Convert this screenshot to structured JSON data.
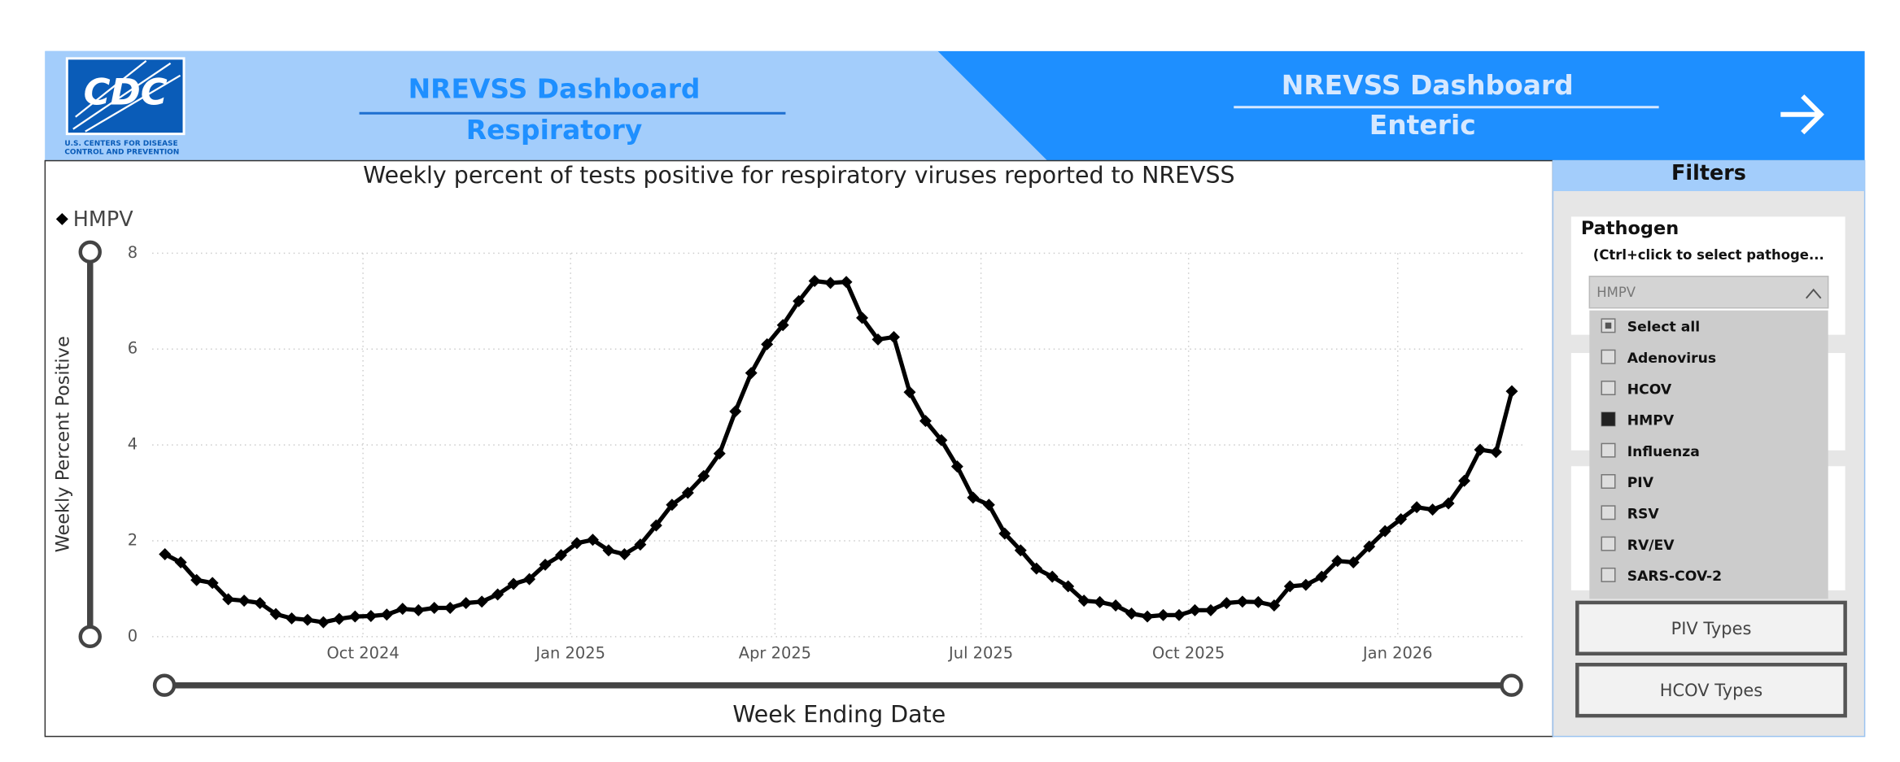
{
  "header": {
    "logo_text": "CDC",
    "logo_subtitle": [
      "U.S. CENTERS FOR DISEASE",
      "CONTROL AND PREVENTION"
    ],
    "tab_respiratory": [
      "NREVSS Dashboard",
      "Respiratory"
    ],
    "tab_enteric": [
      "NREVSS Dashboard",
      "Enteric"
    ]
  },
  "chart_data": {
    "type": "line",
    "title": "Weekly percent of tests positive for respiratory viruses reported to NREVSS",
    "x_label": "Week Ending Date",
    "y_label": "Weekly Percent Positive",
    "series": [
      {
        "name": "HMPV",
        "color": "#000000",
        "values": [
          1.72,
          1.55,
          1.18,
          1.12,
          0.78,
          0.75,
          0.7,
          0.47,
          0.38,
          0.35,
          0.3,
          0.37,
          0.42,
          0.43,
          0.46,
          0.58,
          0.55,
          0.6,
          0.6,
          0.7,
          0.73,
          0.88,
          1.1,
          1.2,
          1.5,
          1.7,
          1.95,
          2.02,
          1.8,
          1.72,
          1.92,
          2.32,
          2.75,
          3.0,
          3.35,
          3.82,
          4.7,
          5.5,
          6.1,
          6.5,
          7.0,
          7.42,
          7.38,
          7.4,
          6.65,
          6.2,
          6.25,
          5.1,
          4.5,
          4.1,
          3.55,
          2.9,
          2.75,
          2.15,
          1.8,
          1.42,
          1.25,
          1.05,
          0.75,
          0.72,
          0.65,
          0.48,
          0.42,
          0.45,
          0.45,
          0.55,
          0.55,
          0.7,
          0.73,
          0.72,
          0.65,
          1.05,
          1.08,
          1.25,
          1.58,
          1.55,
          1.88,
          2.2,
          2.45,
          2.7,
          2.65,
          2.78,
          3.25,
          3.9,
          3.85,
          5.12
        ]
      }
    ],
    "xlim": [
      -0.8,
      85.9
    ],
    "xticks": [
      {
        "value": 12.5,
        "label": "Oct 2024"
      },
      {
        "value": 25.6,
        "label": "Jan 2025"
      },
      {
        "value": 38.5,
        "label": "Apr 2025"
      },
      {
        "value": 51.5,
        "label": "Jul 2025"
      },
      {
        "value": 64.6,
        "label": "Oct 2025"
      },
      {
        "value": 77.8,
        "label": "Jan 2026"
      }
    ],
    "ylim": [
      0,
      8
    ],
    "yticks": [
      0,
      2,
      4,
      6,
      8
    ],
    "grid": true,
    "legend": "top-left"
  },
  "filters": {
    "title": "Filters",
    "pathogen": {
      "label": "Pathogen",
      "hint": "(Ctrl+click to select pathoge...",
      "selected": "HMPV",
      "options": [
        "Select all",
        "Adenovirus",
        "HCOV",
        "HMPV",
        "Influenza",
        "PIV",
        "RSV",
        "RV/EV",
        "SARS-COV-2"
      ]
    },
    "buttons": [
      "PIV Types",
      "HCOV Types"
    ]
  }
}
